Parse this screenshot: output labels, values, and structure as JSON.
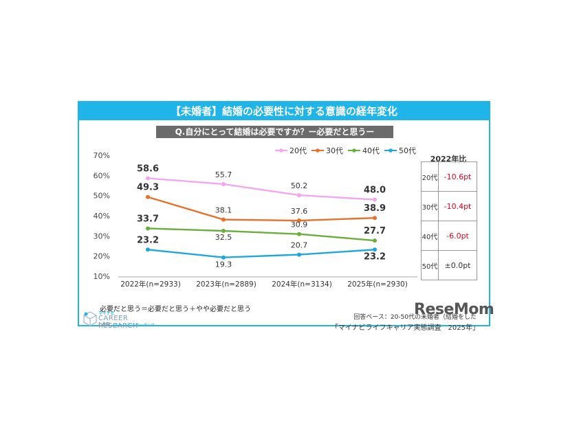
{
  "banner_title": "【未婚者】結婚の必要性に対する意識の経年変化",
  "question": "Q.自分にとって結婚は必要ですか？ー必要だと思うー",
  "chart_data": {
    "type": "line",
    "categories": [
      "2022年(n=2933)",
      "2023年(n=2889)",
      "2024年(n=3134)",
      "2025年(n=2930)"
    ],
    "ylim": [
      10,
      70
    ],
    "yticks": [
      "10%",
      "20%",
      "30%",
      "40%",
      "50%",
      "60%",
      "70%"
    ],
    "ytick_values": [
      10,
      20,
      30,
      40,
      50,
      60,
      70
    ],
    "legend_position": "top",
    "series": [
      {
        "name": "20代",
        "color": "#f3a6ef",
        "values": [
          58.6,
          55.7,
          50.2,
          48.0
        ],
        "labels": [
          "58.6",
          "55.7",
          "50.2",
          "48.0"
        ]
      },
      {
        "name": "30代",
        "color": "#e8702a",
        "values": [
          49.3,
          38.1,
          37.6,
          38.9
        ],
        "labels": [
          "49.3",
          "38.1",
          "37.6",
          "38.9"
        ]
      },
      {
        "name": "40代",
        "color": "#6aaf3d",
        "values": [
          33.7,
          32.5,
          30.9,
          27.7
        ],
        "labels": [
          "33.7",
          "32.5",
          "30.9",
          "27.7"
        ]
      },
      {
        "name": "50代",
        "color": "#1ea6df",
        "values": [
          23.2,
          19.3,
          20.7,
          23.2
        ],
        "labels": [
          "23.2",
          "19.3",
          "20.7",
          "23.2"
        ]
      }
    ]
  },
  "comparison": {
    "header": "2022年比",
    "rows": [
      {
        "age": "20代",
        "diff": "-10.6pt",
        "color": "#e0001a"
      },
      {
        "age": "30代",
        "diff": "-10.4pt",
        "color": "#e0001a"
      },
      {
        "age": "40代",
        "diff": "-6.0pt",
        "color": "#e0001a"
      },
      {
        "age": "50代",
        "diff": "±0.0pt",
        "color": "#333333"
      }
    ]
  },
  "footnote": "必要だと思う＝必要だと思う＋やや必要だと思う",
  "source": "回答ベース：20-50代の未婚者（結婚をした",
  "survey": "「マイナビライフキャリア実態調査　2025年」",
  "logo": {
    "small": "マイナビ",
    "line1": "CAREER RESEARCH",
    "line2": "LAB",
    "line2_sub": "キャリアリサーチLab"
  },
  "watermark": "ReseMom"
}
